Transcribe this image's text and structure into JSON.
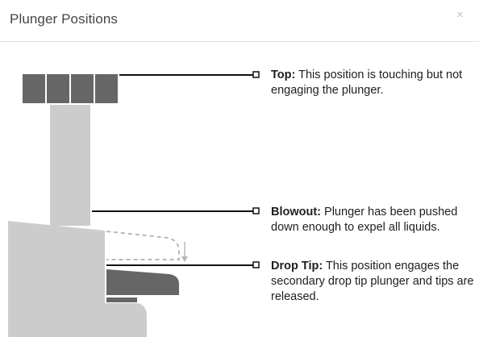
{
  "dialog": {
    "title": "Plunger Positions",
    "close_label": "×"
  },
  "positions": [
    {
      "key": "top",
      "label": "Top:",
      "text": " This position is touching but not engaging the plunger."
    },
    {
      "key": "blowout",
      "label": "Blowout:",
      "text": " Plunger has been pushed down enough to expel all liquids."
    },
    {
      "key": "drop_tip",
      "label": "Drop Tip:",
      "text": " This position engages the secondary drop tip plunger and tips are released."
    }
  ],
  "colors": {
    "plunger_light": "#cccccc",
    "plunger_dark": "#666666",
    "leader_line": "#111111",
    "dashed_outline": "#b8b8b8"
  }
}
